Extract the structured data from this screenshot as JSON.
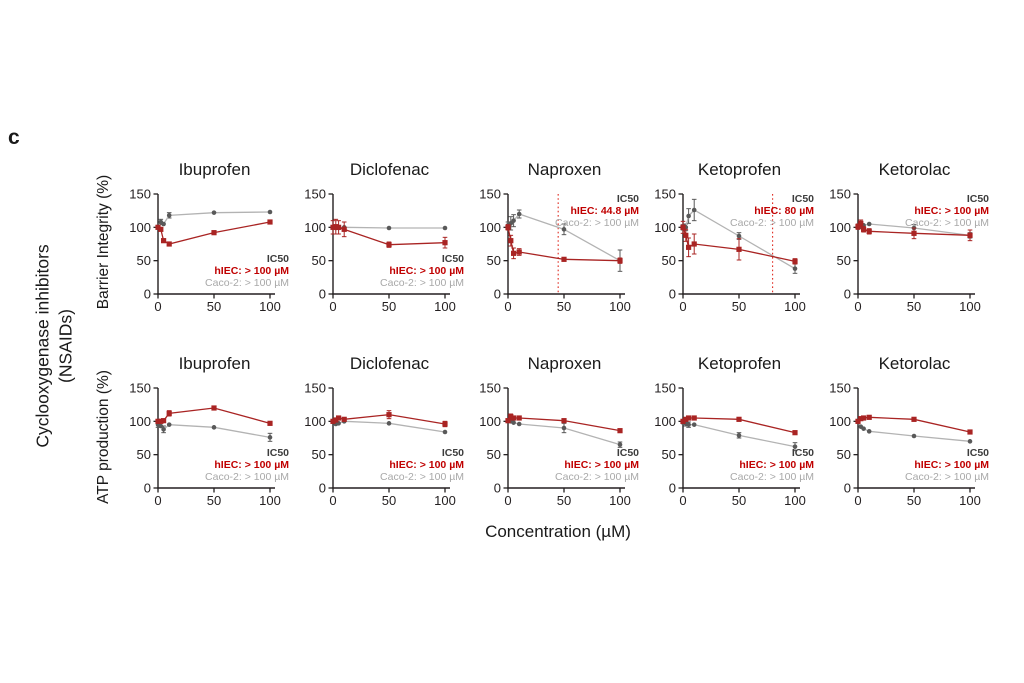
{
  "figure": {
    "panel_letter": "c",
    "group_label_line1": "Cyclooxygenase inhibitors",
    "group_label_line2": "(NSAIDs)",
    "colors": {
      "hiec": "#a92423",
      "hiec_text": "#c00000",
      "caco2_line": "#b3b3b3",
      "caco2_marker": "#595959",
      "caco2_text": "#a8a8a8",
      "ic50_text": "#3d3d3d",
      "axis": "#231f20",
      "vline": "#e02b20"
    }
  },
  "chart_data": {
    "type": "line",
    "xlabel": "Concentration (µM)",
    "x": [
      0,
      2.5,
      5,
      10,
      50,
      100
    ],
    "xticks": [
      0,
      50,
      100
    ],
    "yticks": [
      0,
      50,
      100,
      150
    ],
    "xlim": [
      0,
      105
    ],
    "ylim": [
      0,
      150
    ],
    "series_names": [
      "hIEC",
      "Caco-2"
    ],
    "rows": [
      {
        "ylabel": "Barrier Integrity (%)",
        "panels": [
          {
            "title": "Ibuprofen",
            "ic50": {
              "heading": "IC50",
              "hiec": "hIEC: > 100 µM",
              "caco2": "Caco-2: > 100 µM",
              "position": "bottom-right",
              "vline_x": null
            },
            "hiec": {
              "y": [
                100,
                97,
                80,
                75,
                92,
                108
              ],
              "err": [
                2,
                2,
                2,
                2,
                2,
                2
              ]
            },
            "caco2": {
              "y": [
                101,
                108,
                105,
                118,
                122,
                123
              ],
              "err": [
                2,
                4,
                2,
                4,
                2,
                2
              ]
            }
          },
          {
            "title": "Diclofenac",
            "ic50": {
              "heading": "IC50",
              "hiec": "hIEC: > 100 µM",
              "caco2": "Caco-2: > 100 µM",
              "position": "bottom-right",
              "vline_x": null
            },
            "hiec": {
              "y": [
                100,
                101,
                100,
                97,
                74,
                77
              ],
              "err": [
                10,
                11,
                10,
                11,
                4,
                8
              ]
            },
            "caco2": {
              "y": [
                100,
                99,
                99,
                100,
                99,
                99
              ],
              "err": [
                2,
                2,
                2,
                2,
                2,
                2
              ]
            }
          },
          {
            "title": "Naproxen",
            "ic50": {
              "heading": "IC50",
              "hiec": "hIEC:  44.8 µM",
              "caco2": "Caco-2: > 100 µM",
              "position": "top-right",
              "vline_x": 44.8
            },
            "hiec": {
              "y": [
                100,
                80,
                61,
                63,
                52,
                50
              ],
              "err": [
                4,
                8,
                8,
                5,
                2,
                4
              ]
            },
            "caco2": {
              "y": [
                103,
                106,
                110,
                120,
                97,
                50
              ],
              "err": [
                5,
                10,
                9,
                6,
                8,
                16
              ]
            }
          },
          {
            "title": "Ketoprofen",
            "ic50": {
              "heading": "IC50",
              "hiec": "hIEC:  80 µM",
              "caco2": "Caco-2: > 100 µM",
              "position": "top-right",
              "vline_x": 80
            },
            "hiec": {
              "y": [
                100,
                88,
                70,
                75,
                67,
                49
              ],
              "err": [
                9,
                9,
                14,
                15,
                16,
                4
              ]
            },
            "caco2": {
              "y": [
                100,
                100,
                117,
                126,
                87,
                38
              ],
              "err": [
                4,
                5,
                11,
                16,
                5,
                7
              ]
            }
          },
          {
            "title": "Ketorolac",
            "ic50": {
              "heading": "IC50",
              "hiec": "hIEC: > 100 µM",
              "caco2": "Caco-2: > 100 µM",
              "position": "top-right",
              "vline_x": null
            },
            "hiec": {
              "y": [
                101,
                106,
                97,
                94,
                91,
                88
              ],
              "err": [
                4,
                5,
                4,
                4,
                8,
                8
              ]
            },
            "caco2": {
              "y": [
                100,
                101,
                103,
                105,
                99,
                88
              ],
              "err": [
                2,
                2,
                2,
                2,
                5,
                4
              ]
            }
          }
        ]
      },
      {
        "ylabel": "ATP production (%)",
        "panels": [
          {
            "title": "Ibuprofen",
            "ic50": {
              "heading": "IC50",
              "hiec": "hIEC: > 100 µM",
              "caco2": "Caco-2: > 100 µM",
              "position": "bottom-right",
              "vline_x": null
            },
            "hiec": {
              "y": [
                100,
                100,
                101,
                112,
                120,
                97
              ],
              "err": [
                2,
                2,
                2,
                4,
                2,
                2
              ]
            },
            "caco2": {
              "y": [
                95,
                93,
                88,
                95,
                91,
                76
              ],
              "err": [
                4,
                2,
                5,
                2,
                2,
                6
              ]
            }
          },
          {
            "title": "Diclofenac",
            "ic50": {
              "heading": "IC50",
              "hiec": "hIEC: > 100 µM",
              "caco2": "Caco-2: > 100 µM",
              "position": "bottom-right",
              "vline_x": null
            },
            "hiec": {
              "y": [
                100,
                102,
                105,
                103,
                110,
                96
              ],
              "err": [
                2,
                2,
                2,
                2,
                6,
                4
              ]
            },
            "caco2": {
              "y": [
                99,
                96,
                97,
                100,
                97,
                84
              ],
              "err": [
                2,
                2,
                2,
                2,
                2,
                2
              ]
            }
          },
          {
            "title": "Naproxen",
            "ic50": {
              "heading": "IC50",
              "hiec": "hIEC: > 100 µM",
              "caco2": "Caco-2: > 100 µM",
              "position": "bottom-right",
              "vline_x": null
            },
            "hiec": {
              "y": [
                101,
                107,
                105,
                105,
                101,
                86
              ],
              "err": [
                2,
                4,
                2,
                2,
                2,
                2
              ]
            },
            "caco2": {
              "y": [
                100,
                100,
                98,
                96,
                90,
                65
              ],
              "err": [
                2,
                2,
                2,
                2,
                7,
                4
              ]
            }
          },
          {
            "title": "Ketoprofen",
            "ic50": {
              "heading": "IC50",
              "hiec": "hIEC: > 100 µM",
              "caco2": "Caco-2: > 100 µM",
              "position": "bottom-right",
              "vline_x": null
            },
            "hiec": {
              "y": [
                100,
                103,
                105,
                105,
                103,
                83
              ],
              "err": [
                2,
                2,
                2,
                2,
                2,
                2
              ]
            },
            "caco2": {
              "y": [
                98,
                97,
                95,
                95,
                79,
                62
              ],
              "err": [
                2,
                4,
                4,
                2,
                4,
                6
              ]
            }
          },
          {
            "title": "Ketorolac",
            "ic50": {
              "heading": "IC50",
              "hiec": "hIEC: > 100 µM",
              "caco2": "Caco-2: > 100 µM",
              "position": "bottom-right",
              "vline_x": null
            },
            "hiec": {
              "y": [
                100,
                104,
                105,
                106,
                103,
                84
              ],
              "err": [
                2,
                2,
                2,
                2,
                2,
                2
              ]
            },
            "caco2": {
              "y": [
                99,
                92,
                89,
                85,
                78,
                70
              ],
              "err": [
                2,
                2,
                2,
                2,
                2,
                2
              ]
            }
          }
        ]
      }
    ]
  }
}
